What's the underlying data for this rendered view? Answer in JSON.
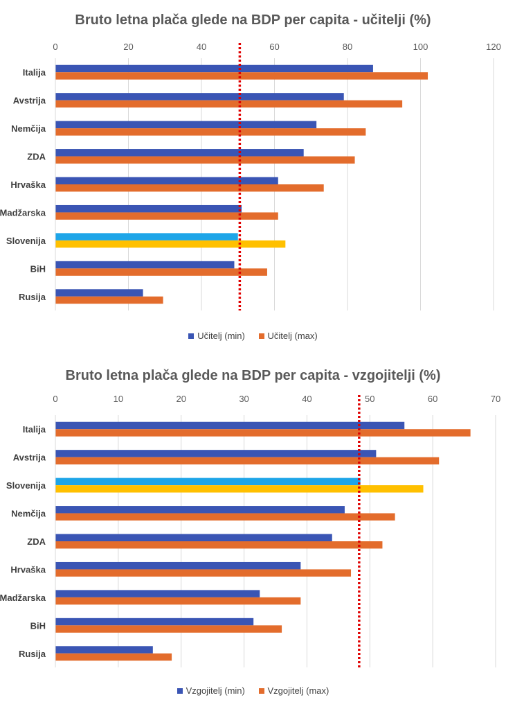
{
  "chart_data": [
    {
      "type": "bar",
      "orientation": "horizontal",
      "title": "Bruto letna plača glede na BDP per capita - učitelji (%)",
      "categories": [
        "Italija",
        "Avstrija",
        "Nemčija",
        "ZDA",
        "Hrvaška",
        "Madžarska",
        "Slovenija",
        "BiH",
        "Rusija"
      ],
      "series": [
        {
          "name": "Učitelj (min)",
          "color": "#3a55b4",
          "values": [
            87,
            79,
            71.5,
            68,
            61,
            51,
            50,
            49,
            24
          ]
        },
        {
          "name": "Učitelj (max)",
          "color": "#e36c2c",
          "values": [
            102,
            95,
            85,
            82,
            73.5,
            61,
            63,
            58,
            29.5
          ]
        }
      ],
      "highlight": {
        "category": "Slovenija",
        "colors": [
          "#1ea5e8",
          "#ffc000"
        ]
      },
      "reference_line": {
        "value": 50.5,
        "color": "#e00000",
        "style": "dotted"
      },
      "xlim": [
        0,
        120
      ],
      "ticks": [
        0,
        20,
        40,
        60,
        80,
        100,
        120
      ],
      "grid": true,
      "legend_position": "bottom"
    },
    {
      "type": "bar",
      "orientation": "horizontal",
      "title": "Bruto letna plača glede na BDP per capita - vzgojitelji (%)",
      "categories": [
        "Italija",
        "Avstrija",
        "Slovenija",
        "Nemčija",
        "ZDA",
        "Hrvaška",
        "Madžarska",
        "BiH",
        "Rusija"
      ],
      "series": [
        {
          "name": "Vzgojitelj (min)",
          "color": "#3a55b4",
          "values": [
            55.5,
            51,
            48.5,
            46,
            44,
            39,
            32.5,
            31.5,
            15.5
          ]
        },
        {
          "name": "Vzgojitelj (max)",
          "color": "#e36c2c",
          "values": [
            66,
            61,
            58.5,
            54,
            52,
            47,
            39,
            36,
            18.5
          ]
        }
      ],
      "highlight": {
        "category": "Slovenija",
        "colors": [
          "#1ea5e8",
          "#ffc000"
        ]
      },
      "reference_line": {
        "value": 48.3,
        "color": "#e00000",
        "style": "dotted"
      },
      "xlim": [
        0,
        70
      ],
      "ticks": [
        0,
        10,
        20,
        30,
        40,
        50,
        60,
        70
      ],
      "grid": true,
      "legend_position": "bottom"
    }
  ]
}
